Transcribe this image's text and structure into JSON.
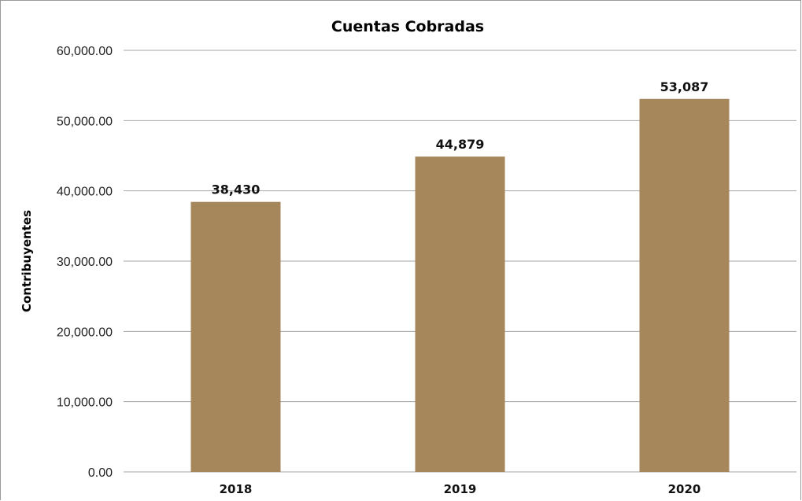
{
  "chart_data": {
    "type": "bar",
    "title": "Cuentas Cobradas",
    "xlabel": "",
    "ylabel": "Contribuyentes",
    "categories": [
      "2018",
      "2019",
      "2020"
    ],
    "values": [
      38430,
      44879,
      53087
    ],
    "data_labels": [
      "38,430",
      "44,879",
      "53,087"
    ],
    "yticks": [
      "0.00",
      "10,000.00",
      "20,000.00",
      "30,000.00",
      "40,000.00",
      "50,000.00",
      "60,000.00"
    ],
    "ylim": [
      0,
      60000
    ],
    "grid": true,
    "legend": "none",
    "bar_color": "#a6865b"
  }
}
